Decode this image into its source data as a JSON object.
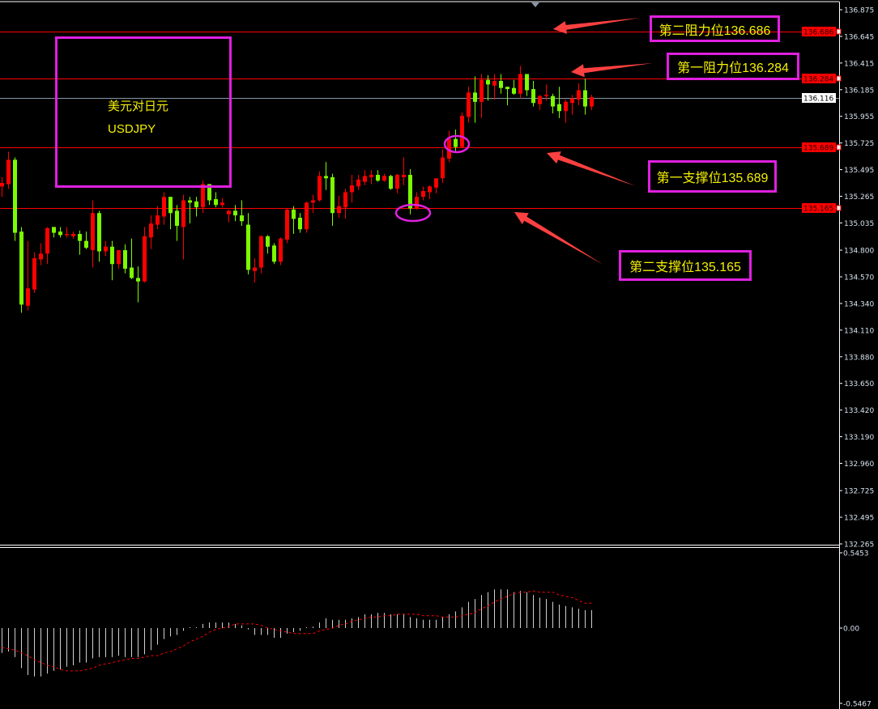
{
  "symbol": {
    "name_cn": "美元对日元",
    "code": "USDJPY"
  },
  "annotations": [
    {
      "label": "第二阻力位136.686",
      "level": 136.686
    },
    {
      "label": "第一阻力位136.284",
      "level": 136.284
    },
    {
      "label": "第一支撑位135.689",
      "level": 135.689
    },
    {
      "label": "第二支撑位135.165",
      "level": 135.165
    }
  ],
  "colors": {
    "bull": "#ff0000",
    "bear": "#7cfc00",
    "level_line": "#ff0000",
    "annotation_border": "#e020e0",
    "annotation_text": "#f4f000",
    "arrow": "#ff4040",
    "macd_hist": "#d0d0d0",
    "macd_signal": "#ff0000"
  },
  "chart_data": [
    {
      "type": "candlestick",
      "title": "",
      "ylim": [
        132.265,
        136.875
      ],
      "grid": false,
      "y_ticks": [
        "136.875",
        "136.645",
        "136.415",
        "136.185",
        "135.955",
        "135.725",
        "135.495",
        "135.265",
        "135.035",
        "134.800",
        "134.570",
        "134.340",
        "134.110",
        "133.880",
        "133.650",
        "133.420",
        "133.190",
        "132.960",
        "132.725",
        "132.495",
        "132.265"
      ],
      "current_price": "136.116",
      "level_tags": [
        "136.686",
        "136.284",
        "135.689",
        "135.165"
      ],
      "ohlc": [
        [
          135.35,
          135.43,
          135.26,
          135.38
        ],
        [
          135.37,
          135.65,
          135.33,
          135.58
        ],
        [
          135.58,
          135.6,
          134.88,
          134.95
        ],
        [
          134.96,
          135.0,
          134.26,
          134.33
        ],
        [
          134.32,
          134.88,
          134.28,
          134.47
        ],
        [
          134.46,
          134.78,
          134.43,
          134.73
        ],
        [
          134.72,
          134.86,
          134.67,
          134.77
        ],
        [
          134.77,
          135.0,
          134.68,
          134.99
        ],
        [
          135.0,
          135.0,
          134.91,
          134.95
        ],
        [
          134.96,
          135.0,
          134.91,
          134.93
        ],
        [
          134.94,
          135.0,
          134.91,
          134.94
        ],
        [
          134.92,
          134.96,
          134.9,
          134.94
        ],
        [
          134.94,
          134.97,
          134.76,
          134.88
        ],
        [
          134.88,
          134.96,
          134.81,
          134.82
        ],
        [
          134.8,
          135.23,
          134.65,
          135.12
        ],
        [
          135.12,
          135.14,
          134.7,
          134.79
        ],
        [
          134.79,
          134.88,
          134.75,
          134.83
        ],
        [
          134.83,
          134.88,
          134.54,
          134.68
        ],
        [
          134.68,
          134.8,
          134.64,
          134.8
        ],
        [
          134.8,
          134.85,
          134.6,
          134.64
        ],
        [
          134.65,
          134.9,
          134.55,
          134.56
        ],
        [
          134.56,
          134.66,
          134.35,
          134.53
        ],
        [
          134.53,
          135.0,
          134.52,
          134.92
        ],
        [
          134.91,
          135.1,
          134.81,
          135.03
        ],
        [
          135.02,
          135.18,
          134.98,
          135.1
        ],
        [
          135.09,
          135.3,
          135.02,
          135.26
        ],
        [
          135.26,
          135.26,
          134.98,
          135.12
        ],
        [
          135.14,
          135.19,
          134.88,
          135.01
        ],
        [
          135.0,
          135.28,
          134.72,
          135.23
        ],
        [
          135.23,
          135.26,
          135.03,
          135.21
        ],
        [
          135.22,
          135.26,
          135.09,
          135.17
        ],
        [
          135.17,
          135.4,
          135.12,
          135.37
        ],
        [
          135.37,
          135.37,
          135.19,
          135.23
        ],
        [
          135.24,
          135.3,
          135.17,
          135.19
        ],
        [
          135.19,
          135.25,
          135.17,
          135.21
        ],
        [
          135.11,
          135.15,
          135.04,
          135.14
        ],
        [
          135.14,
          135.19,
          135.05,
          135.1
        ],
        [
          135.1,
          135.23,
          135.01,
          135.05
        ],
        [
          135.02,
          135.12,
          134.59,
          134.63
        ],
        [
          134.62,
          134.73,
          134.52,
          134.65
        ],
        [
          134.65,
          134.93,
          134.6,
          134.92
        ],
        [
          134.92,
          134.93,
          134.77,
          134.83
        ],
        [
          134.84,
          134.86,
          134.68,
          134.7
        ],
        [
          134.7,
          134.91,
          134.67,
          134.9
        ],
        [
          134.89,
          135.16,
          134.86,
          135.15
        ],
        [
          135.15,
          135.18,
          134.94,
          135.07
        ],
        [
          135.08,
          135.12,
          134.95,
          134.98
        ],
        [
          134.98,
          135.22,
          134.95,
          135.21
        ],
        [
          135.21,
          135.28,
          135.12,
          135.23
        ],
        [
          135.23,
          135.48,
          135.22,
          135.44
        ],
        [
          135.44,
          135.56,
          135.32,
          135.42
        ],
        [
          135.43,
          135.46,
          135.01,
          135.12
        ],
        [
          135.12,
          135.27,
          135.08,
          135.18
        ],
        [
          135.17,
          135.33,
          135.07,
          135.3
        ],
        [
          135.3,
          135.45,
          135.21,
          135.36
        ],
        [
          135.35,
          135.45,
          135.32,
          135.41
        ],
        [
          135.39,
          135.49,
          135.36,
          135.44
        ],
        [
          135.43,
          135.49,
          135.37,
          135.45
        ],
        [
          135.45,
          135.49,
          135.39,
          135.4
        ],
        [
          135.4,
          135.46,
          135.39,
          135.44
        ],
        [
          135.44,
          135.45,
          135.32,
          135.33
        ],
        [
          135.33,
          135.46,
          135.29,
          135.45
        ],
        [
          135.43,
          135.6,
          135.36,
          135.45
        ],
        [
          135.45,
          135.5,
          135.11,
          135.16
        ],
        [
          135.16,
          135.3,
          135.15,
          135.26
        ],
        [
          135.26,
          135.35,
          135.23,
          135.31
        ],
        [
          135.3,
          135.36,
          135.24,
          135.35
        ],
        [
          135.34,
          135.42,
          135.29,
          135.42
        ],
        [
          135.42,
          135.67,
          135.38,
          135.6
        ],
        [
          135.59,
          135.83,
          135.56,
          135.76
        ],
        [
          135.76,
          135.84,
          135.65,
          135.69
        ],
        [
          135.69,
          135.99,
          135.68,
          135.96
        ],
        [
          135.95,
          136.21,
          135.9,
          136.16
        ],
        [
          136.16,
          136.3,
          135.9,
          136.08
        ],
        [
          136.08,
          136.32,
          135.94,
          136.27
        ],
        [
          136.27,
          136.31,
          136.09,
          136.23
        ],
        [
          136.22,
          136.32,
          136.1,
          136.26
        ],
        [
          136.26,
          136.32,
          136.15,
          136.2
        ],
        [
          136.21,
          136.21,
          136.05,
          136.19
        ],
        [
          136.2,
          136.27,
          136.14,
          136.15
        ],
        [
          136.15,
          136.39,
          136.11,
          136.32
        ],
        [
          136.32,
          136.32,
          136.13,
          136.18
        ],
        [
          136.19,
          136.26,
          136.04,
          136.07
        ],
        [
          136.06,
          136.14,
          136.01,
          136.13
        ],
        [
          136.13,
          136.23,
          136.09,
          136.14
        ],
        [
          136.13,
          136.15,
          135.98,
          136.04
        ],
        [
          136.06,
          136.21,
          135.94,
          136.0
        ],
        [
          136.0,
          136.1,
          135.9,
          136.08
        ],
        [
          136.07,
          136.14,
          135.97,
          136.11
        ],
        [
          136.1,
          136.24,
          136.05,
          136.18
        ],
        [
          136.18,
          136.28,
          135.97,
          136.04
        ],
        [
          136.04,
          136.14,
          136.01,
          136.12
        ]
      ]
    },
    {
      "type": "bar",
      "title": "",
      "ylim": [
        -0.5467,
        0.5453
      ],
      "y_ticks": [
        "0.5453",
        "0.00",
        "-0.5467"
      ],
      "series": [
        {
          "values": [
            -0.18,
            -0.17,
            -0.21,
            -0.29,
            -0.34,
            -0.35,
            -0.35,
            -0.33,
            -0.31,
            -0.3,
            -0.28,
            -0.27,
            -0.25,
            -0.25,
            -0.22,
            -0.21,
            -0.21,
            -0.21,
            -0.2,
            -0.21,
            -0.21,
            -0.21,
            -0.19,
            -0.16,
            -0.12,
            -0.08,
            -0.06,
            -0.05,
            -0.02,
            0.005,
            0.005,
            0.03,
            0.04,
            0.04,
            0.04,
            0.04,
            0.03,
            0.02,
            -0.01,
            -0.05,
            -0.05,
            -0.05,
            -0.07,
            -0.07,
            -0.04,
            -0.03,
            -0.02,
            0.0,
            0.01,
            0.04,
            0.07,
            0.06,
            0.06,
            0.06,
            0.07,
            0.08,
            0.1,
            0.1,
            0.11,
            0.11,
            0.1,
            0.1,
            0.1,
            0.08,
            0.07,
            0.06,
            0.06,
            0.06,
            0.08,
            0.1,
            0.12,
            0.15,
            0.19,
            0.21,
            0.24,
            0.26,
            0.28,
            0.28,
            0.28,
            0.26,
            0.27,
            0.26,
            0.24,
            0.22,
            0.21,
            0.19,
            0.17,
            0.16,
            0.15,
            0.14,
            0.13,
            0.13
          ]
        },
        {
          "type": "line",
          "style": "dotted",
          "values": [
            -0.14,
            -0.15,
            -0.16,
            -0.18,
            -0.2,
            -0.23,
            -0.25,
            -0.27,
            -0.28,
            -0.3,
            -0.31,
            -0.31,
            -0.31,
            -0.3,
            -0.29,
            -0.27,
            -0.26,
            -0.25,
            -0.24,
            -0.23,
            -0.22,
            -0.22,
            -0.21,
            -0.2,
            -0.2,
            -0.18,
            -0.17,
            -0.15,
            -0.13,
            -0.1,
            -0.08,
            -0.06,
            -0.03,
            -0.01,
            0.0,
            0.01,
            0.03,
            0.03,
            0.03,
            0.03,
            0.02,
            0.0,
            -0.01,
            -0.02,
            -0.03,
            -0.04,
            -0.04,
            -0.04,
            -0.04,
            -0.02,
            -0.01,
            0.0,
            0.02,
            0.03,
            0.05,
            0.06,
            0.07,
            0.08,
            0.08,
            0.09,
            0.09,
            0.1,
            0.1,
            0.1,
            0.1,
            0.09,
            0.09,
            0.09,
            0.08,
            0.08,
            0.08,
            0.09,
            0.1,
            0.11,
            0.14,
            0.16,
            0.19,
            0.21,
            0.23,
            0.25,
            0.26,
            0.26,
            0.27,
            0.26,
            0.26,
            0.26,
            0.24,
            0.23,
            0.22,
            0.2,
            0.18,
            0.18
          ]
        }
      ]
    }
  ]
}
